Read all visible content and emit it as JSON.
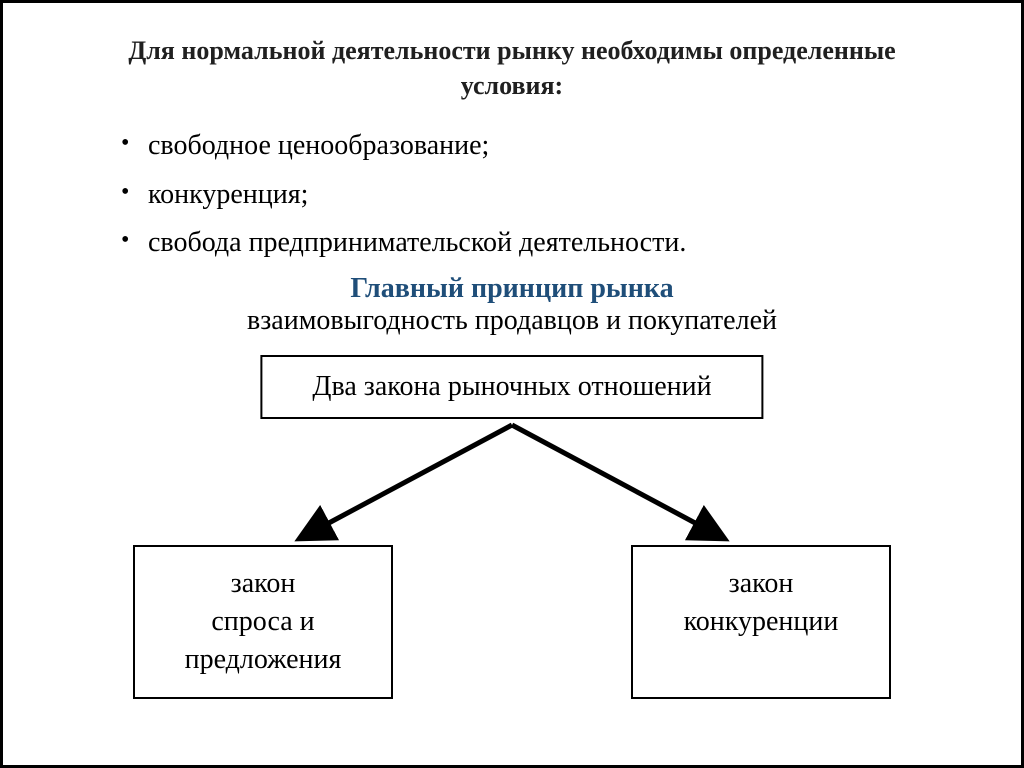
{
  "title": "Для нормальной деятельности рынку необходимы определенные условия:",
  "bullets": {
    "item1": " свободное ценообразование;",
    "item2": "конкуренция;",
    "item3": " свобода предпринимательской деятельности."
  },
  "principle": {
    "heading": "Главный принцип рынка",
    "text": "взаимовыгодность продавцов и покупателей"
  },
  "diagram": {
    "type": "tree",
    "top_label": "Два закона рыночных отношений",
    "left_label": "закон\nспроса и\nпредложения",
    "right_label": "закон\nконкуренции",
    "colors": {
      "border": "#000000",
      "text": "#000000",
      "arrow": "#000000",
      "background": "#ffffff"
    },
    "border_width": 2,
    "arrow_stroke_width": 4,
    "fontsize": 28
  },
  "styling": {
    "title_color": "#202020",
    "title_fontsize": 26,
    "title_fontweight": "bold",
    "body_fontsize": 28,
    "body_color": "#000000",
    "principle_heading_color": "#1f4e79",
    "principle_heading_fontweight": "bold",
    "font_family": "Times New Roman",
    "page_background": "#ffffff",
    "page_border_color": "#000000",
    "page_border_width": 3
  }
}
